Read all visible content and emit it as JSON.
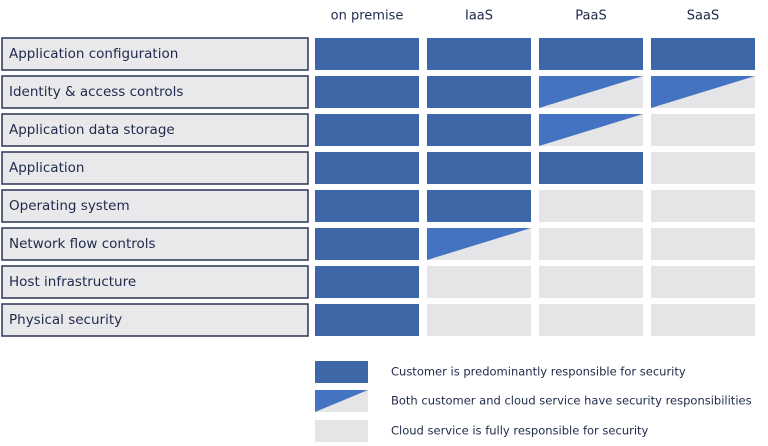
{
  "columns": [
    "on premise",
    "IaaS",
    "PaaS",
    "SaaS"
  ],
  "colors": {
    "customer": "#3d67a6",
    "shared": "#4473c2",
    "cloud": "#e5e5e7"
  },
  "rows": [
    {
      "label": "Application configuration",
      "cells": [
        "customer",
        "customer",
        "customer",
        "customer"
      ]
    },
    {
      "label": "Identity & access controls",
      "cells": [
        "customer",
        "customer",
        "shared",
        "shared"
      ]
    },
    {
      "label": "Application data storage",
      "cells": [
        "customer",
        "customer",
        "shared",
        "cloud"
      ]
    },
    {
      "label": "Application",
      "cells": [
        "customer",
        "customer",
        "customer",
        "cloud"
      ]
    },
    {
      "label": "Operating system",
      "cells": [
        "customer",
        "customer",
        "cloud",
        "cloud"
      ]
    },
    {
      "label": "Network flow controls",
      "cells": [
        "customer",
        "shared",
        "cloud",
        "cloud"
      ]
    },
    {
      "label": "Host infrastructure",
      "cells": [
        "customer",
        "cloud",
        "cloud",
        "cloud"
      ]
    },
    {
      "label": "Physical security",
      "cells": [
        "customer",
        "cloud",
        "cloud",
        "cloud"
      ]
    }
  ],
  "legend": [
    {
      "key": "customer",
      "label": "Customer is predominantly responsible for security"
    },
    {
      "key": "shared",
      "label": "Both customer and cloud service have security responsibilities"
    },
    {
      "key": "cloud",
      "label": "Cloud service is fully responsible for security"
    }
  ]
}
